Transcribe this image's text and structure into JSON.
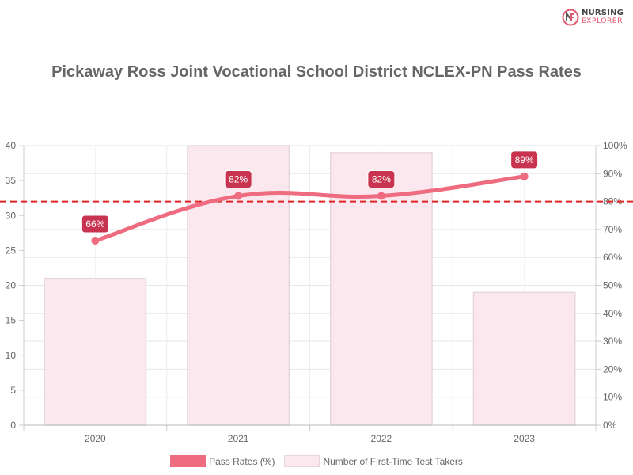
{
  "brand": {
    "line1": "NURSING",
    "line2": "EXPLORER",
    "primary_color": "#e0566f",
    "icon": "nursing-explorer-logo-icon"
  },
  "chart_data": {
    "type": "bar",
    "title": "Pickaway Ross Joint Vocational School District NCLEX-PN Pass Rates",
    "categories": [
      "2020",
      "2021",
      "2022",
      "2023"
    ],
    "series": [
      {
        "name": "Pass Rates (%)",
        "type": "line",
        "axis": "right",
        "values": [
          66,
          82,
          82,
          89
        ],
        "labels": [
          "66%",
          "82%",
          "82%",
          "89%"
        ],
        "color": "#ef6b7f"
      },
      {
        "name": "Number of First-Time Test Takers",
        "type": "bar",
        "axis": "left",
        "values": [
          21,
          40,
          39,
          19
        ],
        "color": "#fbe8ee",
        "border_color": "#e6d7dc"
      }
    ],
    "y_left": {
      "min": 0,
      "max": 40,
      "ticks": [
        "0",
        "5",
        "10",
        "15",
        "20",
        "25",
        "30",
        "35",
        "40"
      ]
    },
    "y_right": {
      "min": 0,
      "max": 100,
      "ticks": [
        "0%",
        "10%",
        "20%",
        "30%",
        "40%",
        "50%",
        "60%",
        "70%",
        "80%",
        "90%",
        "100%"
      ]
    },
    "reference_line": {
      "value": 80,
      "axis": "right",
      "color": "#e02424",
      "style": "dashed"
    },
    "grid": true,
    "legend_position": "bottom"
  }
}
